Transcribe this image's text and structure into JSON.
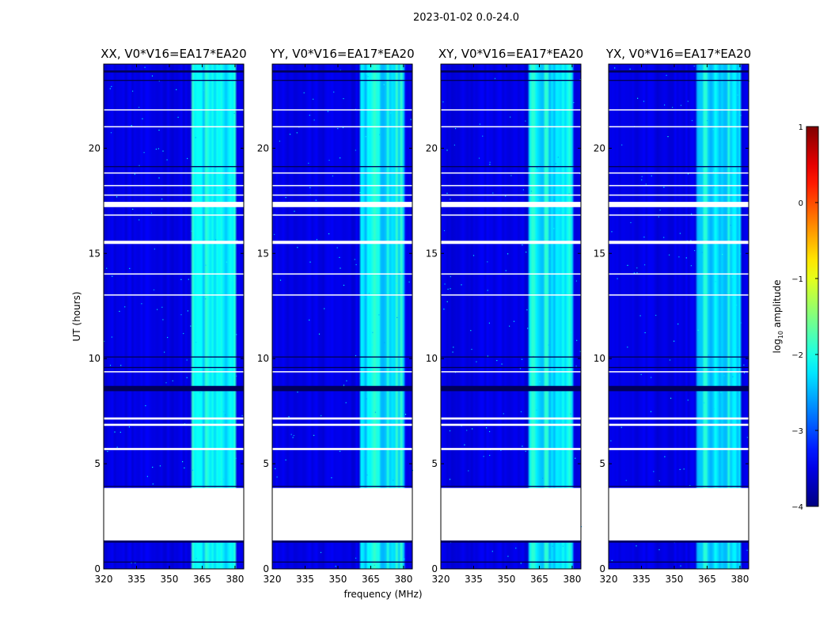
{
  "chart_data": {
    "type": "heatmap",
    "suptitle": "2023-01-02 0.0-24.0",
    "panels": [
      {
        "title": "XX, V0*V16=EA17*EA20",
        "pol": "XX"
      },
      {
        "title": "YY, V0*V16=EA17*EA20",
        "pol": "YY"
      },
      {
        "title": "XY, V0*V16=EA17*EA20",
        "pol": "XY"
      },
      {
        "title": "YX, V0*V16=EA17*EA20",
        "pol": "YX"
      }
    ],
    "xlabel": "frequency (MHz)",
    "ylabel": "UT (hours)",
    "xlim": [
      320,
      384
    ],
    "ylim": [
      0,
      24
    ],
    "xticks": [
      320,
      335,
      350,
      365,
      380
    ],
    "yticks": [
      0,
      5,
      10,
      15,
      20
    ],
    "colorbar": {
      "label_prefix": "log",
      "label_sub": "10",
      "label_suffix": " amplitude",
      "range": [
        -4,
        1
      ],
      "ticks": [
        "−4",
        "−3",
        "−2",
        "−1",
        "0",
        "1"
      ],
      "colormap": "jet"
    },
    "band": {
      "bright_mhz": [
        360,
        380
      ],
      "base_log_amplitude": -3.5,
      "band_log_amplitude": -2.2
    },
    "flagged_hours": [
      [
        1.35,
        3.85
      ],
      [
        5.65,
        5.75
      ],
      [
        6.8,
        6.9
      ],
      [
        7.1,
        7.2
      ],
      [
        9.35,
        9.4
      ],
      [
        13.0,
        13.05
      ],
      [
        14.0,
        14.05
      ],
      [
        15.45,
        15.6
      ],
      [
        16.8,
        16.85
      ],
      [
        17.2,
        17.45
      ],
      [
        17.75,
        17.8
      ],
      [
        18.2,
        18.25
      ],
      [
        18.8,
        18.85
      ],
      [
        21.0,
        21.05
      ],
      [
        21.8,
        21.85
      ]
    ],
    "dark_hours": [
      [
        0.3,
        0.35
      ],
      [
        1.25,
        1.35
      ],
      [
        3.9,
        3.95
      ],
      [
        8.45,
        8.7
      ],
      [
        9.55,
        9.6
      ],
      [
        10.05,
        10.1
      ],
      [
        19.1,
        19.15
      ],
      [
        23.2,
        23.25
      ],
      [
        23.6,
        23.7
      ]
    ]
  }
}
